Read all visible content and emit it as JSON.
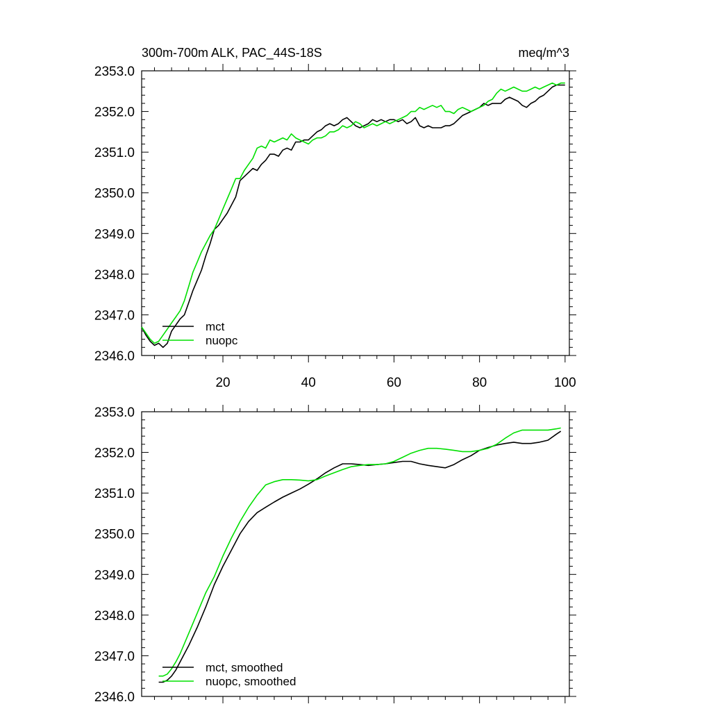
{
  "chart_data": [
    {
      "type": "line",
      "title": "300m-700m ALK, PAC_44S-18S",
      "units": "meq/m^3",
      "xlim": [
        1,
        101
      ],
      "ylim": [
        2346.0,
        2353.0
      ],
      "xticks": [
        20,
        40,
        60,
        80,
        100
      ],
      "xtick_labels": [
        "20",
        "40",
        "60",
        "80",
        "100"
      ],
      "yticks": [
        2346.0,
        2347.0,
        2348.0,
        2349.0,
        2350.0,
        2351.0,
        2352.0,
        2353.0
      ],
      "ytick_labels": [
        "2346.0",
        "2347.0",
        "2348.0",
        "2349.0",
        "2350.0",
        "2351.0",
        "2352.0",
        "2353.0"
      ],
      "legend_position": "bottom-left",
      "grid": false,
      "series": [
        {
          "name": "mct",
          "color": "#000000",
          "x": [
            1,
            2,
            3,
            4,
            5,
            6,
            7,
            8,
            9,
            10,
            11,
            12,
            13,
            14,
            15,
            16,
            17,
            18,
            19,
            20,
            21,
            22,
            23,
            24,
            25,
            26,
            27,
            28,
            29,
            30,
            31,
            32,
            33,
            34,
            35,
            36,
            37,
            38,
            39,
            40,
            41,
            42,
            43,
            44,
            45,
            46,
            47,
            48,
            49,
            50,
            51,
            52,
            53,
            54,
            55,
            56,
            57,
            58,
            59,
            60,
            61,
            62,
            63,
            64,
            65,
            66,
            67,
            68,
            69,
            70,
            71,
            72,
            73,
            74,
            75,
            76,
            77,
            78,
            79,
            80,
            81,
            82,
            83,
            84,
            85,
            86,
            87,
            88,
            89,
            90,
            91,
            92,
            93,
            94,
            95,
            96,
            97,
            98,
            99,
            100
          ],
          "y": [
            2346.7,
            2346.5,
            2346.35,
            2346.25,
            2346.3,
            2346.2,
            2346.3,
            2346.6,
            2346.75,
            2346.9,
            2347.0,
            2347.3,
            2347.6,
            2347.85,
            2348.1,
            2348.45,
            2348.75,
            2349.1,
            2349.2,
            2349.35,
            2349.5,
            2349.7,
            2349.9,
            2350.3,
            2350.4,
            2350.5,
            2350.6,
            2350.55,
            2350.7,
            2350.8,
            2350.95,
            2350.95,
            2350.9,
            2351.05,
            2351.1,
            2351.05,
            2351.25,
            2351.25,
            2351.3,
            2351.3,
            2351.4,
            2351.5,
            2351.55,
            2351.65,
            2351.7,
            2351.65,
            2351.7,
            2351.8,
            2351.85,
            2351.75,
            2351.65,
            2351.6,
            2351.65,
            2351.7,
            2351.8,
            2351.75,
            2351.8,
            2351.75,
            2351.8,
            2351.8,
            2351.75,
            2351.8,
            2351.7,
            2351.75,
            2351.85,
            2351.65,
            2351.6,
            2351.65,
            2351.6,
            2351.6,
            2351.6,
            2351.65,
            2351.65,
            2351.7,
            2351.8,
            2351.9,
            2351.95,
            2352.0,
            2352.05,
            2352.1,
            2352.2,
            2352.15,
            2352.2,
            2352.2,
            2352.2,
            2352.3,
            2352.35,
            2352.3,
            2352.25,
            2352.15,
            2352.1,
            2352.2,
            2352.25,
            2352.35,
            2352.4,
            2352.5,
            2352.6,
            2352.65,
            2352.65,
            2352.65
          ]
        },
        {
          "name": "nuopc",
          "color": "#00e000",
          "x": [
            1,
            2,
            3,
            4,
            5,
            6,
            7,
            8,
            9,
            10,
            11,
            12,
            13,
            14,
            15,
            16,
            17,
            18,
            19,
            20,
            21,
            22,
            23,
            24,
            25,
            26,
            27,
            28,
            29,
            30,
            31,
            32,
            33,
            34,
            35,
            36,
            37,
            38,
            39,
            40,
            41,
            42,
            43,
            44,
            45,
            46,
            47,
            48,
            49,
            50,
            51,
            52,
            53,
            54,
            55,
            56,
            57,
            58,
            59,
            60,
            61,
            62,
            63,
            64,
            65,
            66,
            67,
            68,
            69,
            70,
            71,
            72,
            73,
            74,
            75,
            76,
            77,
            78,
            79,
            80,
            81,
            82,
            83,
            84,
            85,
            86,
            87,
            88,
            89,
            90,
            91,
            92,
            93,
            94,
            95,
            96,
            97,
            98,
            99,
            100
          ],
          "y": [
            2346.7,
            2346.55,
            2346.4,
            2346.3,
            2346.35,
            2346.5,
            2346.65,
            2346.8,
            2346.95,
            2347.1,
            2347.35,
            2347.7,
            2348.05,
            2348.3,
            2348.55,
            2348.75,
            2348.95,
            2349.1,
            2349.35,
            2349.6,
            2349.85,
            2350.1,
            2350.35,
            2350.35,
            2350.55,
            2350.7,
            2350.85,
            2351.1,
            2351.15,
            2351.1,
            2351.3,
            2351.25,
            2351.3,
            2351.35,
            2351.3,
            2351.45,
            2351.35,
            2351.3,
            2351.25,
            2351.2,
            2351.3,
            2351.35,
            2351.35,
            2351.4,
            2351.5,
            2351.5,
            2351.55,
            2351.65,
            2351.6,
            2351.65,
            2351.75,
            2351.7,
            2351.6,
            2351.65,
            2351.7,
            2351.65,
            2351.7,
            2351.75,
            2351.7,
            2351.75,
            2351.8,
            2351.85,
            2351.9,
            2352.0,
            2352.0,
            2352.1,
            2352.05,
            2352.1,
            2352.15,
            2352.1,
            2352.15,
            2352.0,
            2352.0,
            2351.95,
            2352.05,
            2352.1,
            2352.05,
            2352.0,
            2352.05,
            2352.1,
            2352.15,
            2352.25,
            2352.3,
            2352.45,
            2352.55,
            2352.5,
            2352.55,
            2352.6,
            2352.55,
            2352.5,
            2352.5,
            2352.55,
            2352.6,
            2352.55,
            2352.6,
            2352.65,
            2352.7,
            2352.65,
            2352.7,
            2352.7
          ]
        }
      ]
    },
    {
      "type": "line",
      "title": "",
      "xlim": [
        1,
        101
      ],
      "ylim": [
        2346.0,
        2353.0
      ],
      "xticks": [
        20,
        40,
        60,
        80,
        100
      ],
      "xtick_labels": [],
      "yticks": [
        2346.0,
        2347.0,
        2348.0,
        2349.0,
        2350.0,
        2351.0,
        2352.0,
        2353.0
      ],
      "ytick_labels": [
        "2346.0",
        "2347.0",
        "2348.0",
        "2349.0",
        "2350.0",
        "2351.0",
        "2352.0",
        "2353.0"
      ],
      "legend_position": "bottom-left",
      "grid": false,
      "series": [
        {
          "name": "mct, smoothed",
          "color": "#000000",
          "x": [
            5,
            6,
            7,
            8,
            9,
            10,
            12,
            14,
            16,
            18,
            20,
            22,
            24,
            26,
            28,
            30,
            32,
            34,
            36,
            38,
            40,
            42,
            44,
            46,
            48,
            50,
            52,
            54,
            56,
            58,
            60,
            62,
            64,
            66,
            68,
            70,
            72,
            74,
            76,
            78,
            80,
            82,
            84,
            86,
            88,
            90,
            92,
            94,
            96,
            98,
            99
          ],
          "y": [
            2346.35,
            2346.35,
            2346.4,
            2346.5,
            2346.65,
            2346.85,
            2347.25,
            2347.7,
            2348.2,
            2348.75,
            2349.2,
            2349.6,
            2350.0,
            2350.3,
            2350.52,
            2350.65,
            2350.78,
            2350.9,
            2351.0,
            2351.1,
            2351.22,
            2351.35,
            2351.5,
            2351.62,
            2351.72,
            2351.72,
            2351.7,
            2351.68,
            2351.7,
            2351.72,
            2351.75,
            2351.78,
            2351.78,
            2351.72,
            2351.68,
            2351.65,
            2351.62,
            2351.7,
            2351.82,
            2351.92,
            2352.05,
            2352.12,
            2352.18,
            2352.22,
            2352.25,
            2352.22,
            2352.22,
            2352.25,
            2352.3,
            2352.45,
            2352.52
          ]
        },
        {
          "name": "nuopc, smoothed",
          "color": "#00e000",
          "x": [
            5,
            6,
            7,
            8,
            9,
            10,
            12,
            14,
            16,
            18,
            20,
            22,
            24,
            26,
            28,
            30,
            32,
            34,
            36,
            38,
            40,
            42,
            44,
            46,
            48,
            50,
            52,
            54,
            56,
            58,
            60,
            62,
            64,
            66,
            68,
            70,
            72,
            74,
            76,
            78,
            80,
            82,
            84,
            86,
            88,
            90,
            92,
            94,
            96,
            98,
            99
          ],
          "y": [
            2346.5,
            2346.5,
            2346.55,
            2346.68,
            2346.85,
            2347.05,
            2347.55,
            2348.05,
            2348.55,
            2348.95,
            2349.45,
            2349.9,
            2350.3,
            2350.65,
            2350.95,
            2351.2,
            2351.28,
            2351.33,
            2351.33,
            2351.32,
            2351.3,
            2351.33,
            2351.42,
            2351.5,
            2351.58,
            2351.65,
            2351.68,
            2351.7,
            2351.7,
            2351.72,
            2351.78,
            2351.88,
            2351.98,
            2352.05,
            2352.1,
            2352.1,
            2352.08,
            2352.05,
            2352.02,
            2352.02,
            2352.05,
            2352.1,
            2352.2,
            2352.35,
            2352.48,
            2352.55,
            2352.55,
            2352.55,
            2352.55,
            2352.58,
            2352.6
          ]
        }
      ]
    }
  ]
}
